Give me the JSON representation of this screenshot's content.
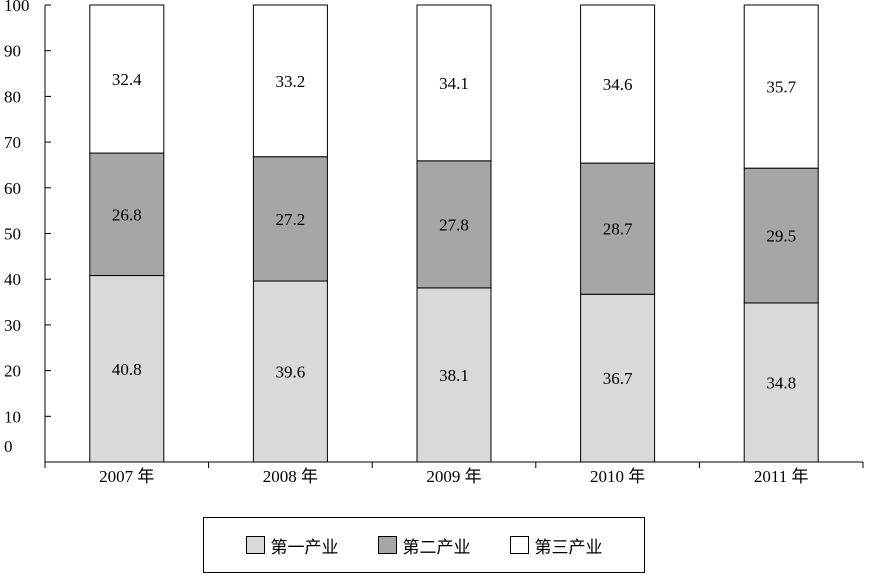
{
  "chart_data": {
    "type": "bar",
    "stacked": true,
    "categories": [
      "2007 年",
      "2008 年",
      "2009 年",
      "2010 年",
      "2011 年"
    ],
    "series": [
      {
        "name": "第一产业",
        "color": "#d9d9d9",
        "values": [
          40.8,
          39.6,
          38.1,
          36.7,
          34.8
        ]
      },
      {
        "name": "第二产业",
        "color": "#a6a6a6",
        "values": [
          26.8,
          27.2,
          27.8,
          28.7,
          29.5
        ]
      },
      {
        "name": "第三产业",
        "color": "#ffffff",
        "values": [
          32.4,
          33.2,
          34.1,
          34.6,
          35.7
        ]
      }
    ],
    "ylim": [
      0,
      100
    ],
    "yticks": [
      0,
      10,
      20,
      30,
      40,
      50,
      60,
      70,
      80,
      90,
      100
    ],
    "grid": false,
    "legend_position": "bottom"
  }
}
